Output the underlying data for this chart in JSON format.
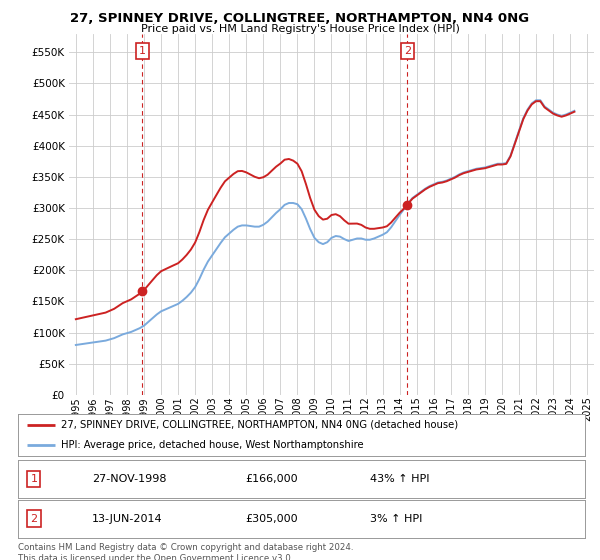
{
  "title": "27, SPINNEY DRIVE, COLLINGTREE, NORTHAMPTON, NN4 0NG",
  "subtitle": "Price paid vs. HM Land Registry's House Price Index (HPI)",
  "yticks": [
    0,
    50000,
    100000,
    150000,
    200000,
    250000,
    300000,
    350000,
    400000,
    450000,
    500000,
    550000
  ],
  "ytick_labels": [
    "£0",
    "£50K",
    "£100K",
    "£150K",
    "£200K",
    "£250K",
    "£300K",
    "£350K",
    "£400K",
    "£450K",
    "£500K",
    "£550K"
  ],
  "ylim": [
    0,
    580000
  ],
  "hpi_color": "#7aaadd",
  "price_color": "#cc2222",
  "background_color": "#ffffff",
  "grid_color": "#cccccc",
  "annotation1_date": "27-NOV-1998",
  "annotation1_price": 166000,
  "annotation1_hpi_pct": "43%",
  "annotation2_date": "13-JUN-2014",
  "annotation2_price": 305000,
  "annotation2_hpi_pct": "3%",
  "legend_line1": "27, SPINNEY DRIVE, COLLINGTREE, NORTHAMPTON, NN4 0NG (detached house)",
  "legend_line2": "HPI: Average price, detached house, West Northamptonshire",
  "footer": "Contains HM Land Registry data © Crown copyright and database right 2024.\nThis data is licensed under the Open Government Licence v3.0.",
  "hpi_x": [
    1995.0,
    1995.25,
    1995.5,
    1995.75,
    1996.0,
    1996.25,
    1996.5,
    1996.75,
    1997.0,
    1997.25,
    1997.5,
    1997.75,
    1998.0,
    1998.25,
    1998.5,
    1998.75,
    1999.0,
    1999.25,
    1999.5,
    1999.75,
    2000.0,
    2000.25,
    2000.5,
    2000.75,
    2001.0,
    2001.25,
    2001.5,
    2001.75,
    2002.0,
    2002.25,
    2002.5,
    2002.75,
    2003.0,
    2003.25,
    2003.5,
    2003.75,
    2004.0,
    2004.25,
    2004.5,
    2004.75,
    2005.0,
    2005.25,
    2005.5,
    2005.75,
    2006.0,
    2006.25,
    2006.5,
    2006.75,
    2007.0,
    2007.25,
    2007.5,
    2007.75,
    2008.0,
    2008.25,
    2008.5,
    2008.75,
    2009.0,
    2009.25,
    2009.5,
    2009.75,
    2010.0,
    2010.25,
    2010.5,
    2010.75,
    2011.0,
    2011.25,
    2011.5,
    2011.75,
    2012.0,
    2012.25,
    2012.5,
    2012.75,
    2013.0,
    2013.25,
    2013.5,
    2013.75,
    2014.0,
    2014.25,
    2014.5,
    2014.75,
    2015.0,
    2015.25,
    2015.5,
    2015.75,
    2016.0,
    2016.25,
    2016.5,
    2016.75,
    2017.0,
    2017.25,
    2017.5,
    2017.75,
    2018.0,
    2018.25,
    2018.5,
    2018.75,
    2019.0,
    2019.25,
    2019.5,
    2019.75,
    2020.0,
    2020.25,
    2020.5,
    2020.75,
    2021.0,
    2021.25,
    2021.5,
    2021.75,
    2022.0,
    2022.25,
    2022.5,
    2022.75,
    2023.0,
    2023.25,
    2023.5,
    2023.75,
    2024.0,
    2024.25
  ],
  "hpi_y": [
    80000,
    81000,
    82000,
    83000,
    84000,
    85000,
    86000,
    87000,
    89000,
    91000,
    94000,
    97000,
    99000,
    101000,
    104000,
    107000,
    111000,
    117000,
    123000,
    129000,
    134000,
    137000,
    140000,
    143000,
    146000,
    151000,
    157000,
    164000,
    173000,
    186000,
    201000,
    214000,
    224000,
    234000,
    244000,
    253000,
    259000,
    265000,
    270000,
    272000,
    272000,
    271000,
    270000,
    270000,
    273000,
    278000,
    285000,
    292000,
    298000,
    305000,
    308000,
    308000,
    306000,
    298000,
    283000,
    266000,
    252000,
    245000,
    242000,
    245000,
    252000,
    255000,
    254000,
    250000,
    247000,
    249000,
    251000,
    251000,
    249000,
    249000,
    251000,
    254000,
    257000,
    261000,
    269000,
    279000,
    289000,
    298000,
    308000,
    316000,
    321000,
    326000,
    331000,
    335000,
    338000,
    341000,
    342000,
    344000,
    347000,
    350000,
    354000,
    357000,
    359000,
    361000,
    363000,
    364000,
    365000,
    367000,
    369000,
    371000,
    371000,
    372000,
    384000,
    404000,
    424000,
    444000,
    458000,
    468000,
    473000,
    473000,
    463000,
    458000,
    453000,
    450000,
    448000,
    450000,
    453000,
    456000
  ],
  "ann1_x": 1998.9,
  "ann1_y": 166000,
  "ann2_x": 2014.45,
  "ann2_y": 305000,
  "xtick_years": [
    1995,
    1996,
    1997,
    1998,
    1999,
    2000,
    2001,
    2002,
    2003,
    2004,
    2005,
    2006,
    2007,
    2008,
    2009,
    2010,
    2011,
    2012,
    2013,
    2014,
    2015,
    2016,
    2017,
    2018,
    2019,
    2020,
    2021,
    2022,
    2023,
    2024,
    2025
  ]
}
